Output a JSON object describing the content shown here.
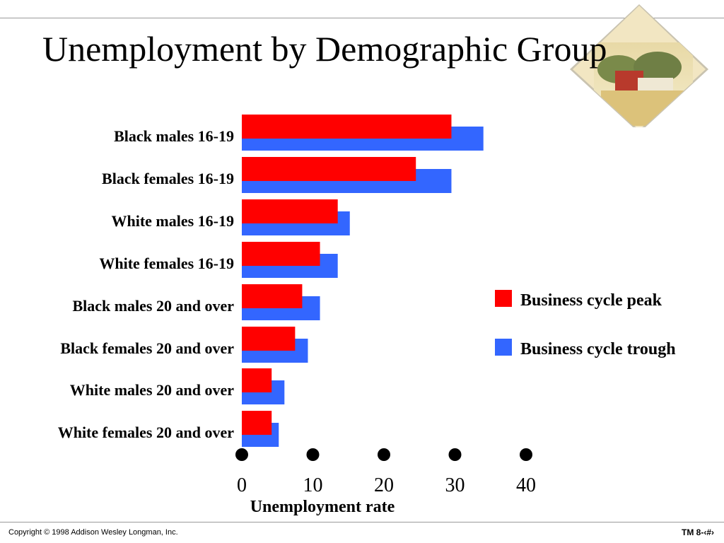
{
  "slide": {
    "title": "Unemployment by Demographic Group",
    "footer_left": "Copyright © 1998 Addison Wesley Longman, Inc.",
    "footer_right": "TM 8-‹#›"
  },
  "colors": {
    "peak": "#ff0000",
    "trough": "#3366ff"
  },
  "chart_data": {
    "type": "bar",
    "orientation": "horizontal",
    "categories": [
      "Black males 16-19",
      "Black females 16-19",
      "White males 16-19",
      "White females 16-19",
      "Black males 20 and over",
      "Black females 20 and over",
      "White males 20 and over",
      "White females 20 and over"
    ],
    "series": [
      {
        "name": "Business cycle peak",
        "values": [
          29.5,
          24.5,
          13.5,
          11,
          8.5,
          7.5,
          4.2,
          4.2
        ]
      },
      {
        "name": "Business cycle trough",
        "values": [
          34,
          29.5,
          15.2,
          13.5,
          11,
          9.3,
          6,
          5.2
        ]
      }
    ],
    "xlabel": "Unemployment rate",
    "xticks": [
      0,
      10,
      20,
      30,
      40
    ],
    "xlim": [
      0,
      40
    ],
    "legend_position": "right"
  }
}
